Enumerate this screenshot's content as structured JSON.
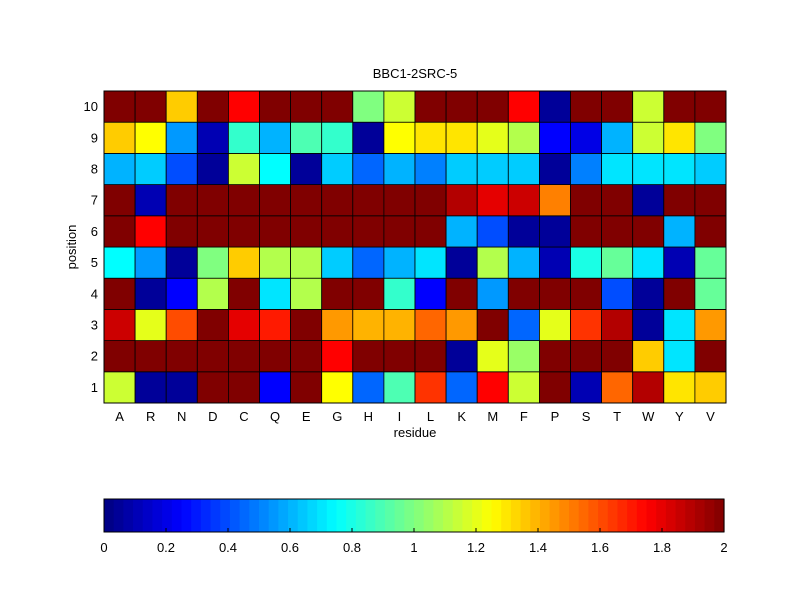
{
  "chart_data": {
    "type": "heatmap",
    "title": "BBC1-2SRC-5",
    "xlabel": "residue",
    "ylabel": "position",
    "x_categories": [
      "A",
      "R",
      "N",
      "D",
      "C",
      "Q",
      "E",
      "G",
      "H",
      "I",
      "L",
      "K",
      "M",
      "F",
      "P",
      "S",
      "T",
      "W",
      "Y",
      "V"
    ],
    "y_categories": [
      "1",
      "2",
      "3",
      "4",
      "5",
      "6",
      "7",
      "8",
      "9",
      "10"
    ],
    "values": [
      [
        1.15,
        0.05,
        0.05,
        2.0,
        2.0,
        0.25,
        2.0,
        1.25,
        0.45,
        0.9,
        1.65,
        0.45,
        1.75,
        1.15,
        2.0,
        0.1,
        1.55,
        1.9,
        1.3,
        1.35
      ],
      [
        2.0,
        2.0,
        2.0,
        2.0,
        2.0,
        2.0,
        2.0,
        1.75,
        2.0,
        2.0,
        2.0,
        0.05,
        1.2,
        1.05,
        2.0,
        2.0,
        2.0,
        1.35,
        0.7,
        2.0
      ],
      [
        1.85,
        1.2,
        1.6,
        2.0,
        1.8,
        1.7,
        2.0,
        1.45,
        1.4,
        1.4,
        1.55,
        1.45,
        2.0,
        0.45,
        1.2,
        1.65,
        1.9,
        0.05,
        0.7,
        1.45
      ],
      [
        2.0,
        0.05,
        0.25,
        1.1,
        2.0,
        0.7,
        1.1,
        2.0,
        2.0,
        0.85,
        0.25,
        2.0,
        0.55,
        2.0,
        2.0,
        2.0,
        0.4,
        0.05,
        2.0,
        0.95
      ],
      [
        0.75,
        0.55,
        0.05,
        1.0,
        1.35,
        1.1,
        1.1,
        0.65,
        0.45,
        0.6,
        0.7,
        0.05,
        1.1,
        0.6,
        0.1,
        0.8,
        0.95,
        0.7,
        0.1,
        0.95
      ],
      [
        2.0,
        1.75,
        2.0,
        2.0,
        2.0,
        2.0,
        2.0,
        2.0,
        2.0,
        2.0,
        2.0,
        0.6,
        0.4,
        0.05,
        0.05,
        2.0,
        2.0,
        2.0,
        0.6,
        2.0
      ],
      [
        2.0,
        0.1,
        2.0,
        2.0,
        2.0,
        2.0,
        2.0,
        2.0,
        2.0,
        2.0,
        2.0,
        1.9,
        1.8,
        1.85,
        1.5,
        2.0,
        2.0,
        0.05,
        2.0,
        2.0
      ],
      [
        0.6,
        0.65,
        0.4,
        0.05,
        1.15,
        0.75,
        0.05,
        0.65,
        0.45,
        0.6,
        0.5,
        0.65,
        0.65,
        0.65,
        0.05,
        0.5,
        0.7,
        0.7,
        0.7,
        0.65
      ],
      [
        1.35,
        1.25,
        0.55,
        0.1,
        0.85,
        0.6,
        0.9,
        0.85,
        0.05,
        1.25,
        1.3,
        1.3,
        1.2,
        1.1,
        0.25,
        0.2,
        0.6,
        1.15,
        1.3,
        1.0
      ],
      [
        2.0,
        2.0,
        1.35,
        2.0,
        1.75,
        2.0,
        2.0,
        2.0,
        1.0,
        1.15,
        2.0,
        2.0,
        2.0,
        1.75,
        0.05,
        2.0,
        2.0,
        1.15,
        2.0,
        2.0
      ]
    ],
    "colorbar": {
      "colormap": "jet",
      "range": [
        0,
        2
      ],
      "ticks": [
        "0",
        "0.2",
        "0.4",
        "0.6",
        "0.8",
        "1",
        "1.2",
        "1.4",
        "1.6",
        "1.8",
        "2"
      ]
    }
  }
}
